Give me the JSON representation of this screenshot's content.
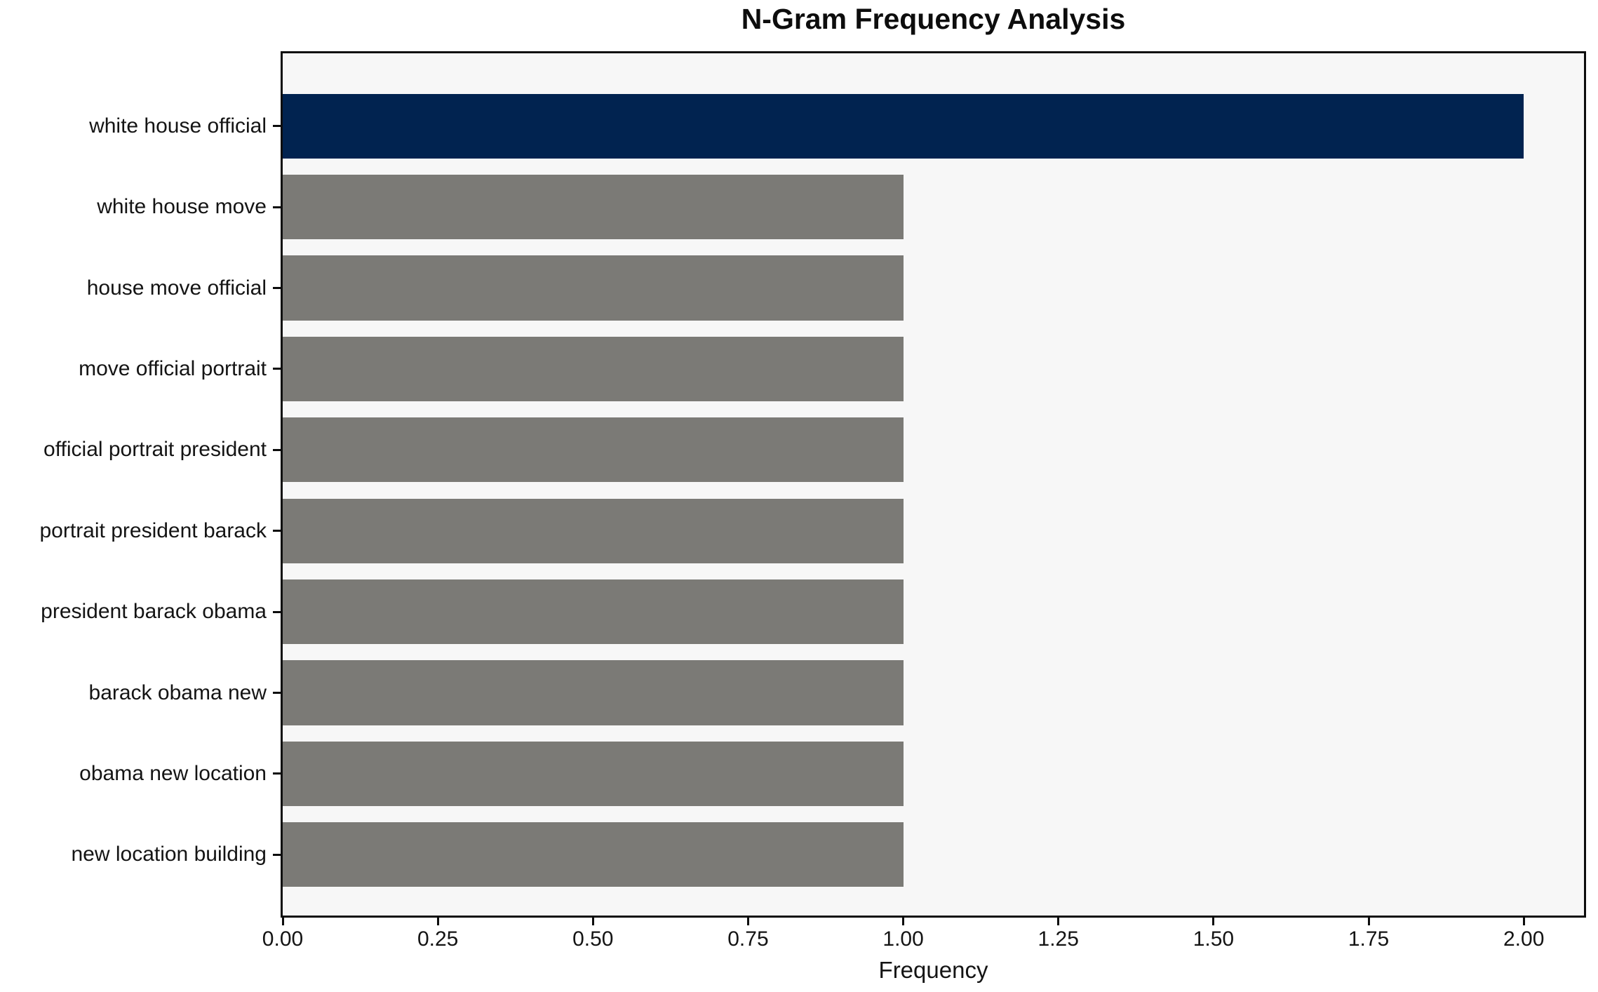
{
  "chart_data": {
    "type": "bar",
    "orientation": "horizontal",
    "title": "N-Gram Frequency Analysis",
    "xlabel": "Frequency",
    "ylabel": "",
    "categories": [
      "white house official",
      "white house move",
      "house move official",
      "move official portrait",
      "official portrait president",
      "portrait president barack",
      "president barack obama",
      "barack obama new",
      "obama new location",
      "new location building"
    ],
    "values": [
      2,
      1,
      1,
      1,
      1,
      1,
      1,
      1,
      1,
      1
    ],
    "bar_colors": [
      "#012350",
      "#7b7a76",
      "#7b7a76",
      "#7b7a76",
      "#7b7a76",
      "#7b7a76",
      "#7b7a76",
      "#7b7a76",
      "#7b7a76",
      "#7b7a76"
    ],
    "x_ticks": [
      0,
      0.25,
      0.5,
      0.75,
      1.0,
      1.25,
      1.5,
      1.75,
      2.0
    ],
    "x_tick_labels": [
      "0.00",
      "0.25",
      "0.50",
      "0.75",
      "1.00",
      "1.25",
      "1.50",
      "1.75",
      "2.00"
    ],
    "xlim": [
      0,
      2.097
    ],
    "grid": false,
    "legend": null,
    "colors": {
      "highlight_bar": "#012350",
      "default_bar": "#7b7a76",
      "plot_background": "#f7f7f7",
      "figure_background": "#ffffff",
      "spine": "#0d0d0d",
      "text": "#141414"
    }
  }
}
